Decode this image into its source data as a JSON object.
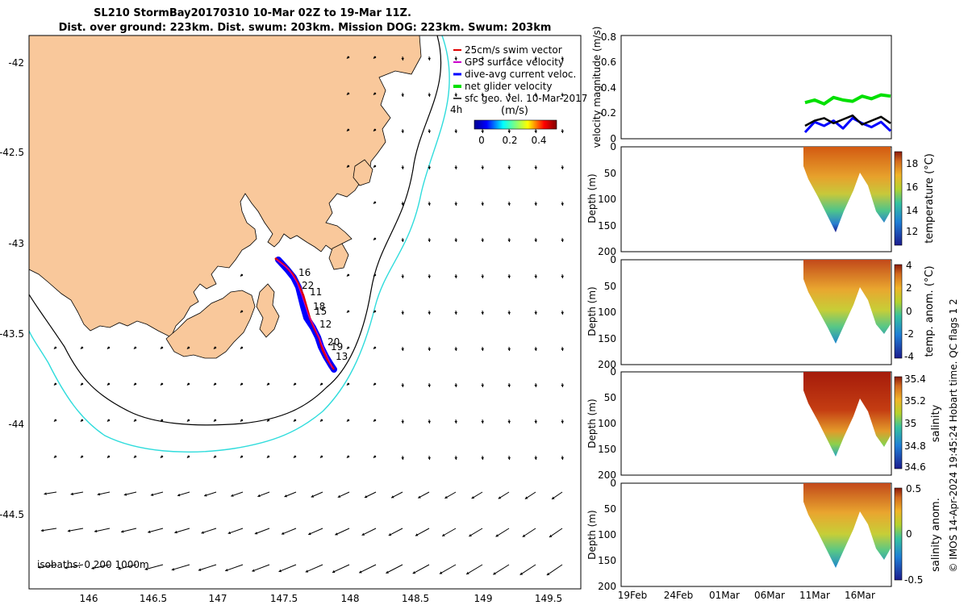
{
  "title": {
    "line1": "SL210 StormBay20170310 10-Mar 02Z to 19-Mar 11Z.",
    "line2": "Dist. over ground: 223km. Dist. swum: 203km. Mission DOG: 223km. Swum: 203km"
  },
  "map": {
    "legend": [
      {
        "label": "25cm/s swim vector",
        "color": "#e00000"
      },
      {
        "label": "GPS surface velocity",
        "color": "#cc00cc"
      },
      {
        "label": "dive-avg current veloc.",
        "color": "#0000ff"
      },
      {
        "label": "net glider velocity",
        "color": "#00e000"
      },
      {
        "label": "sfc geo. vel. 10-Mar-2017",
        "color": "#000000"
      }
    ],
    "hour_label": "4h",
    "colorbar": {
      "title": "(m/s)",
      "ticks": [
        "0",
        "0.2",
        "0.4"
      ]
    },
    "isobath_label": "isobaths: 0   200  1000m",
    "x_ticks": [
      "146",
      "146.5",
      "147",
      "147.5",
      "148",
      "148.5",
      "149",
      "149.5"
    ],
    "y_ticks": [
      "-42",
      "-42.5",
      "-43",
      "-43.5",
      "-44",
      "-44.5"
    ],
    "track_labels": [
      "16",
      "22",
      "11",
      "18",
      "15",
      "12",
      "20",
      "19",
      "13"
    ],
    "land_color": "#f9c89b",
    "isobath_200_color": "#000000",
    "isobath_1000_color": "#2fdcdc"
  },
  "panels": {
    "velocity": {
      "ylabel": "velocity magnitude (m/s)",
      "y_ticks": [
        "0",
        "0.2",
        "0.4",
        "0.6",
        "0.8"
      ]
    },
    "temperature": {
      "depth_label": "Depth (m)",
      "depth_ticks": [
        "0",
        "50",
        "100",
        "150",
        "200"
      ],
      "cbar_label": "temperature (°C)",
      "cbar_ticks": [
        "12",
        "14",
        "16",
        "18"
      ]
    },
    "temp_anom": {
      "depth_label": "Depth (m)",
      "depth_ticks": [
        "0",
        "50",
        "100",
        "150",
        "200"
      ],
      "cbar_label": "temp. anom. (°C)",
      "cbar_ticks": [
        "-4",
        "-2",
        "0",
        "2",
        "4"
      ]
    },
    "salinity": {
      "depth_label": "Depth (m)",
      "depth_ticks": [
        "0",
        "50",
        "100",
        "150",
        "200"
      ],
      "cbar_label": "salinity",
      "cbar_ticks": [
        "34.6",
        "34.8",
        "35",
        "35.2",
        "35.4"
      ]
    },
    "sal_anom": {
      "depth_label": "Depth (m)",
      "depth_ticks": [
        "0",
        "50",
        "100",
        "150",
        "200"
      ],
      "cbar_label": "salinity anom.",
      "cbar_ticks": [
        "-0.5",
        "0",
        "0.5"
      ]
    },
    "date_ticks": [
      "19Feb",
      "24Feb",
      "01Mar",
      "06Mar",
      "11Mar",
      "16Mar"
    ]
  },
  "footer_vertical": "© IMOS 14-Apr-2024 19:45:24 Hobart time. QC flags 1  2",
  "chart_data": {
    "type": "line",
    "title": "SL210 StormBay20170310 10-Mar 02Z to 19-Mar 11Z.",
    "xlabel": "",
    "ylabel": "velocity magnitude (m/s)",
    "ylim": [
      0,
      0.8
    ],
    "x": [
      "10-Mar",
      "11-Mar",
      "12-Mar",
      "13-Mar",
      "14-Mar",
      "15-Mar",
      "16-Mar",
      "17-Mar",
      "18-Mar",
      "19-Mar"
    ],
    "series": [
      {
        "name": "net glider velocity",
        "values": [
          0.28,
          0.3,
          0.27,
          0.32,
          0.3,
          0.29,
          0.33,
          0.31,
          0.34,
          0.33
        ]
      },
      {
        "name": "dive-avg current veloc.",
        "values": [
          0.05,
          0.13,
          0.1,
          0.14,
          0.08,
          0.16,
          0.12,
          0.09,
          0.13,
          0.06
        ]
      },
      {
        "name": "sfc geo. vel. 10-Mar-2017",
        "values": [
          0.1,
          0.14,
          0.16,
          0.12,
          0.15,
          0.18,
          0.11,
          0.14,
          0.17,
          0.12
        ]
      }
    ]
  }
}
